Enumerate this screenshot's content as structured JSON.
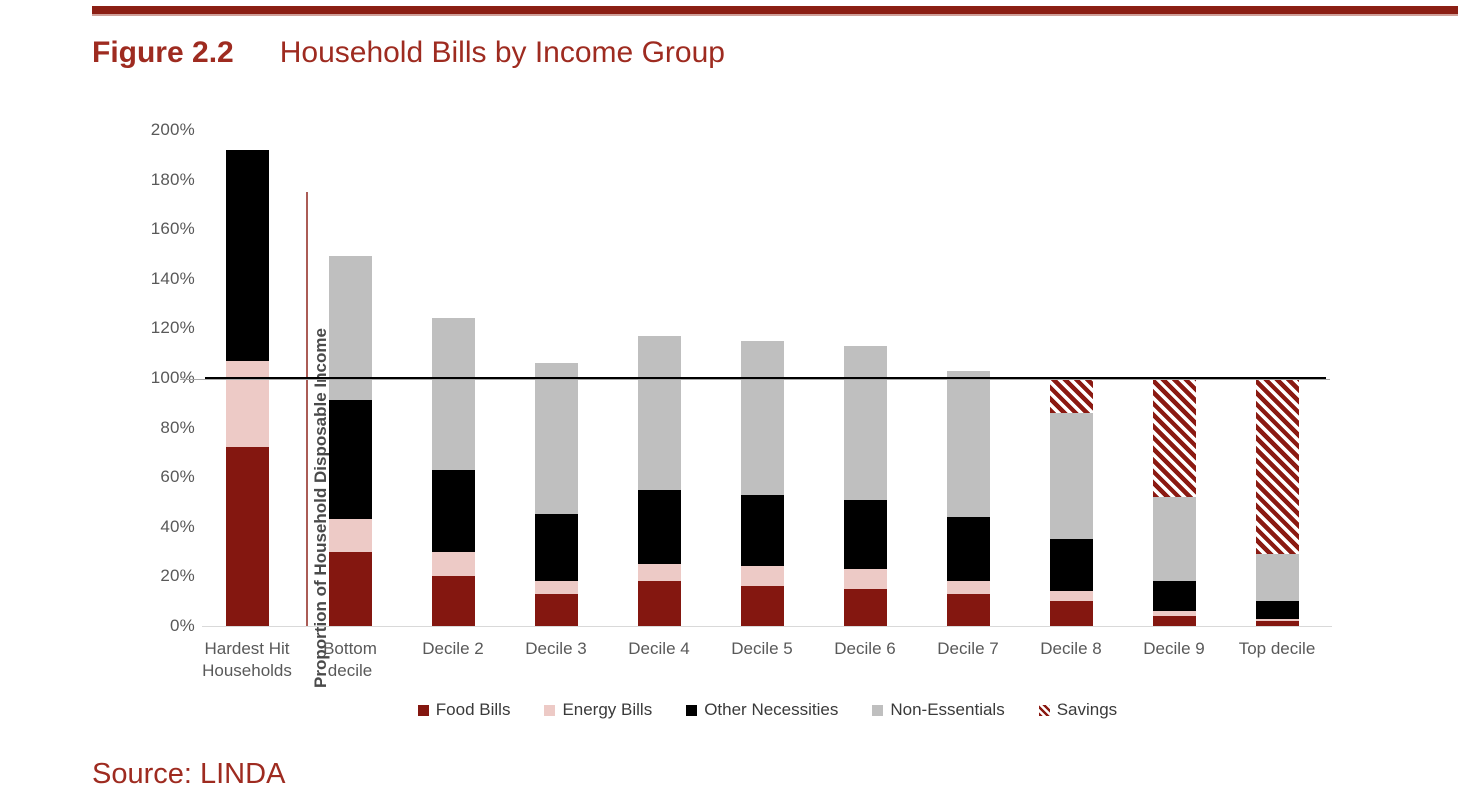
{
  "header": {
    "figure_label": "Figure 2.2",
    "title": "Household Bills by Income Group"
  },
  "footer": {
    "source": "Source: LINDA"
  },
  "chart_data": {
    "type": "bar",
    "stacked": true,
    "title": "Household Bills by Income Group",
    "xlabel": "",
    "ylabel": "Proportion of Household Disposable Income",
    "ylim": [
      0,
      200
    ],
    "ytick_step": 20,
    "ytick_labels": [
      "0%",
      "20%",
      "40%",
      "60%",
      "80%",
      "100%",
      "120%",
      "140%",
      "160%",
      "180%",
      "200%"
    ],
    "grid": false,
    "legend_position": "bottom",
    "categories": [
      "Hardest Hit Households",
      "Bottom decile",
      "Decile 2",
      "Decile 3",
      "Decile 4",
      "Decile 5",
      "Decile 6",
      "Decile 7",
      "Decile 8",
      "Decile 9",
      "Top decile"
    ],
    "series": [
      {
        "name": "Food Bills",
        "color": "#841710",
        "values": [
          72,
          30,
          20,
          13,
          18,
          16,
          15,
          13,
          10,
          4,
          2
        ]
      },
      {
        "name": "Energy Bills",
        "color": "#EDCAC6",
        "values": [
          35,
          13,
          10,
          5,
          7,
          8,
          8,
          5,
          4,
          2,
          1
        ]
      },
      {
        "name": "Other Necessities",
        "color": "#000000",
        "values": [
          85,
          48,
          33,
          27,
          30,
          29,
          28,
          26,
          21,
          12,
          7
        ]
      },
      {
        "name": "Non-Essentials",
        "color": "#BFBFBF",
        "values": [
          0,
          58,
          61,
          61,
          62,
          62,
          62,
          59,
          51,
          34,
          19
        ]
      },
      {
        "name": "Savings",
        "color": "hatch",
        "values": [
          0,
          0,
          0,
          0,
          0,
          0,
          0,
          0,
          14,
          48,
          71
        ]
      }
    ],
    "annotations": {
      "reference_line_y": 100,
      "vertical_divider": {
        "after_category_index": 0,
        "from": 0,
        "to": 175
      }
    },
    "bar_totals": [
      192,
      149,
      124,
      106,
      117,
      115,
      113,
      103,
      100,
      100,
      100
    ]
  },
  "colors": {
    "accent_red": "#9E2B20",
    "header_bar": "#8B1F14",
    "food": "#841710",
    "energy": "#EDCAC6",
    "other_necessities": "#000000",
    "non_essentials": "#BFBFBF",
    "savings_hatch": "#8B1A12",
    "axis_text": "#595959"
  }
}
